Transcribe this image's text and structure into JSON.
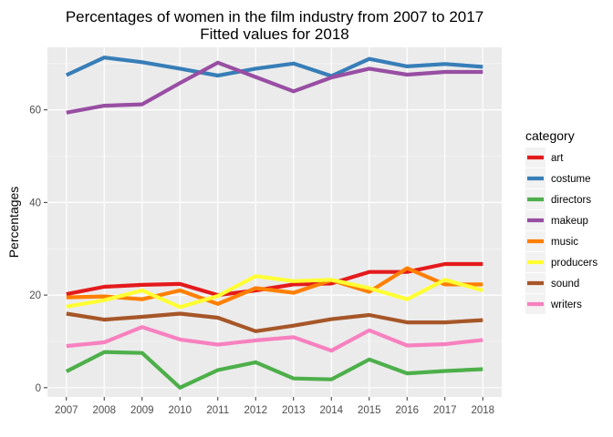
{
  "chart_data": {
    "type": "line",
    "title": "Percentages of women in the film industry from 2007 to 2017",
    "subtitle": "Fitted values for 2018",
    "xlabel": "",
    "ylabel": "Percentages",
    "x": [
      2007,
      2008,
      2009,
      2010,
      2011,
      2012,
      2013,
      2014,
      2015,
      2016,
      2017,
      2018
    ],
    "xlim": [
      2006.5,
      2018.5
    ],
    "ylim": [
      -2,
      73.5
    ],
    "yticks": [
      0,
      20,
      40,
      60
    ],
    "grid": true,
    "legend_title": "category",
    "legend_position": "right",
    "series": [
      {
        "name": "art",
        "color": "#E41A1C",
        "values": [
          20.2,
          21.8,
          22.2,
          22.4,
          20.0,
          21.0,
          22.3,
          22.5,
          25.0,
          25.0,
          26.7,
          26.7
        ]
      },
      {
        "name": "costume",
        "color": "#377EB8",
        "values": [
          67.5,
          71.3,
          70.3,
          68.9,
          67.4,
          68.9,
          70.0,
          67.3,
          71.0,
          69.4,
          69.9,
          69.3
        ]
      },
      {
        "name": "directors",
        "color": "#4DAF4A",
        "values": [
          3.5,
          7.7,
          7.5,
          0.0,
          3.8,
          5.5,
          2.0,
          1.8,
          6.1,
          3.1,
          3.6,
          4.0
        ]
      },
      {
        "name": "makeup",
        "color": "#984EA3",
        "values": [
          59.4,
          60.9,
          61.2,
          65.8,
          70.2,
          67.1,
          64.0,
          67.0,
          68.9,
          67.6,
          68.2,
          68.2
        ]
      },
      {
        "name": "music",
        "color": "#FF7F00",
        "values": [
          19.5,
          19.7,
          19.1,
          21.0,
          18.1,
          21.5,
          20.5,
          23.2,
          20.7,
          25.8,
          22.3,
          22.3
        ]
      },
      {
        "name": "producers",
        "color": "#FFFF33",
        "values": [
          17.5,
          18.9,
          21.0,
          17.4,
          19.8,
          24.1,
          23.0,
          23.3,
          21.5,
          19.1,
          23.3,
          21.0
        ]
      },
      {
        "name": "sound",
        "color": "#A65628",
        "values": [
          16.0,
          14.7,
          15.3,
          16.0,
          15.1,
          12.2,
          13.4,
          14.8,
          15.7,
          14.1,
          14.1,
          14.6
        ]
      },
      {
        "name": "writers",
        "color": "#F781BF",
        "values": [
          9.0,
          9.8,
          13.1,
          10.4,
          9.3,
          10.2,
          10.9,
          8.0,
          12.4,
          9.1,
          9.4,
          10.3
        ]
      }
    ]
  }
}
